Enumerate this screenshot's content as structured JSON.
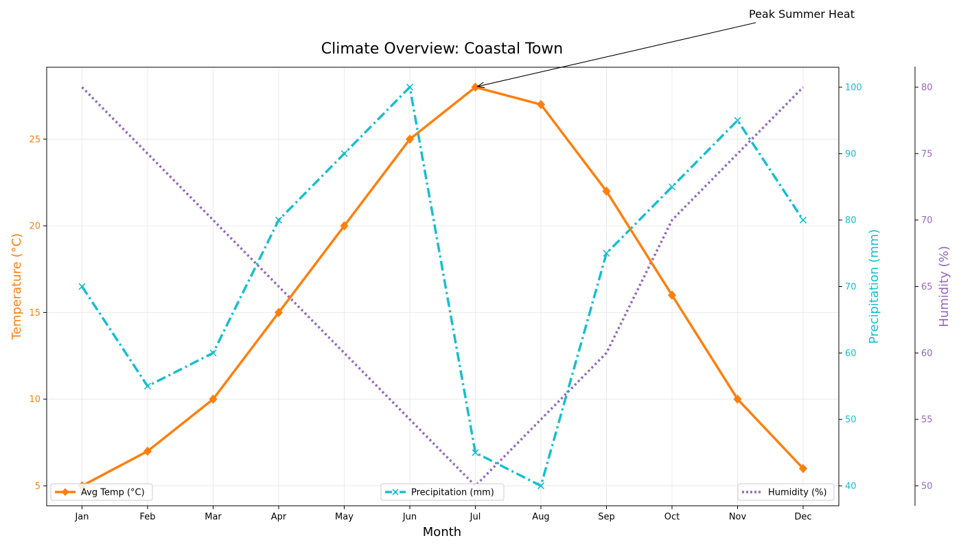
{
  "chart_data": {
    "type": "line",
    "title": "Climate Overview: Coastal Town",
    "xlabel": "Month",
    "categories": [
      "Jan",
      "Feb",
      "Mar",
      "Apr",
      "May",
      "Jun",
      "Jul",
      "Aug",
      "Sep",
      "Oct",
      "Nov",
      "Dec"
    ],
    "grid": true,
    "axes": [
      {
        "id": "temp",
        "side": "left",
        "label": "Temperature (°C)",
        "color": "#ff7f0e",
        "ylim": [
          3.85,
          29.15
        ],
        "ticks": [
          5,
          10,
          15,
          20,
          25
        ]
      },
      {
        "id": "precip",
        "side": "right",
        "label": "Precipitation (mm)",
        "color": "#17becf",
        "ylim": [
          37,
          103
        ],
        "ticks": [
          40,
          50,
          60,
          70,
          80,
          90,
          100
        ]
      },
      {
        "id": "humidity",
        "side": "right-outer",
        "label": "Humidity (%)",
        "color": "#9467bd",
        "ylim": [
          48.5,
          81.5
        ],
        "ticks": [
          50,
          55,
          60,
          65,
          70,
          75,
          80
        ]
      }
    ],
    "series": [
      {
        "name": "Avg Temp (°C)",
        "axis": "temp",
        "color": "#ff7f0e",
        "line_style": "solid",
        "marker": "diamond",
        "legend_position": "lower-left",
        "values": [
          5,
          7,
          10,
          15,
          20,
          25,
          28,
          27,
          22,
          16,
          10,
          6
        ]
      },
      {
        "name": "Precipitation (mm)",
        "axis": "precip",
        "color": "#17becf",
        "line_style": "dash-dot",
        "marker": "x",
        "legend_position": "lower-center",
        "values": [
          70,
          55,
          60,
          80,
          90,
          100,
          45,
          40,
          75,
          85,
          95,
          80
        ]
      },
      {
        "name": "Humidity (%)",
        "axis": "humidity",
        "color": "#9467bd",
        "line_style": "dotted",
        "marker": "none",
        "legend_position": "lower-right",
        "values": [
          80,
          75,
          70,
          65,
          60,
          55,
          50,
          55,
          60,
          70,
          75,
          80
        ]
      }
    ],
    "annotations": [
      {
        "text": "Peak Summer Heat",
        "target_category": "Jul",
        "target_value": 28,
        "target_axis": "temp"
      }
    ]
  }
}
